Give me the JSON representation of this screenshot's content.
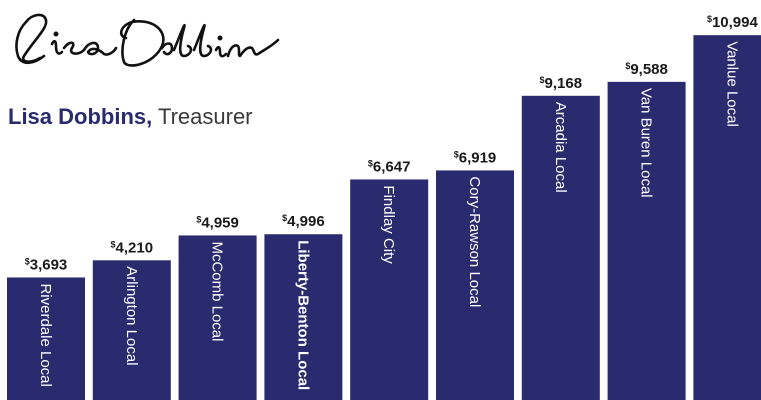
{
  "signature": {
    "text": "Lisa Dobbins"
  },
  "byline": {
    "name": "Lisa Dobbins,",
    "title": "Treasurer"
  },
  "chart_data": {
    "type": "bar",
    "title": "",
    "xlabel": "",
    "ylabel": "",
    "ylim": [
      0,
      11000
    ],
    "grid": false,
    "legend": "none",
    "bar_color": "#2a2a6e",
    "currency_symbol": "$",
    "categories": [
      "Riverdale Local",
      "Arlington Local",
      "McComb Local",
      "Liberty-Benton Local",
      "Findlay City",
      "Cory-Rawson Local",
      "Arcadia Local",
      "Van Buren Local",
      "Vanlue Local"
    ],
    "highlighted_category": "Liberty-Benton Local",
    "values": [
      3693,
      4210,
      4959,
      4996,
      6647,
      6919,
      9168,
      9588,
      10994
    ],
    "value_labels": [
      "3,693",
      "4,210",
      "4,959",
      "4,996",
      "6,647",
      "6,919",
      "9,168",
      "9,588",
      "10,994"
    ]
  }
}
